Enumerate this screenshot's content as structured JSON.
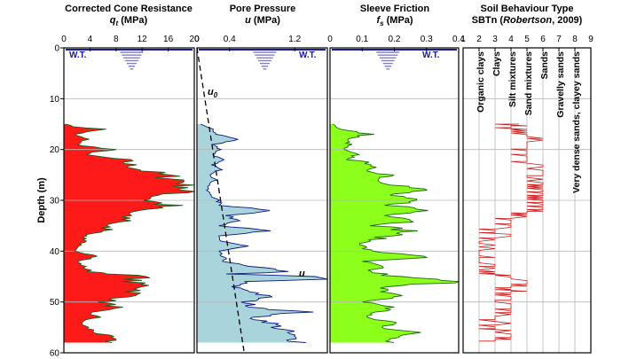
{
  "chart_data": [
    {
      "type": "area",
      "title": "Corrected Cone Resistance",
      "xlabel": "qt (MPa)",
      "ylabel": "Depth (m)",
      "xlim": [
        0,
        20
      ],
      "ylim": [
        60,
        0
      ],
      "xticks": [
        "0",
        "4",
        "8",
        "12",
        "16",
        "20"
      ],
      "yticks": [
        "0",
        "10",
        "20",
        "30",
        "40",
        "50",
        "60"
      ],
      "annotations": [
        "W.T."
      ],
      "water_table_depth": 0,
      "grid": "horizontal",
      "series": [
        {
          "y": [
            15,
            15.5,
            16,
            17,
            18,
            19,
            20,
            21,
            22,
            23,
            24,
            25,
            26,
            27,
            27.5,
            28,
            28.5,
            29,
            30,
            31,
            32,
            33,
            34,
            35,
            36,
            37,
            38,
            39,
            40,
            41,
            42,
            43,
            44,
            45,
            46,
            47,
            48,
            49,
            50,
            51,
            52,
            53,
            54,
            55,
            56,
            57,
            58
          ],
          "values": [
            0.3,
            1.5,
            6,
            1.5,
            3.5,
            2,
            7,
            3,
            9,
            10,
            12,
            15,
            18,
            19.5,
            20,
            17,
            19,
            15,
            13,
            16,
            11,
            9,
            10,
            6,
            7,
            3,
            3.5,
            2,
            1.5,
            6,
            2,
            3,
            4,
            12,
            10,
            13,
            11,
            10,
            6,
            8,
            4,
            5,
            2.5,
            3.5,
            5,
            7,
            7
          ]
        }
      ]
    },
    {
      "type": "area",
      "title": "Pore Pressure",
      "xlabel": "u (MPa)",
      "xlim": [
        0,
        1.6
      ],
      "ylim": [
        60,
        0
      ],
      "xticks": [
        "0",
        "0.4",
        "1.2"
      ],
      "annotations": [
        "W.T.",
        "u0",
        "u"
      ],
      "series": [
        {
          "name": "u",
          "y": [
            15,
            16,
            17,
            18,
            19,
            20,
            21,
            22,
            23,
            24,
            25,
            26,
            27,
            28,
            29,
            30,
            31,
            32,
            33,
            34,
            35,
            36,
            37,
            38,
            39,
            40,
            41,
            42,
            43,
            44,
            44.5,
            45,
            45.5,
            46,
            47,
            48,
            49,
            50,
            51,
            52,
            53,
            54,
            55,
            56,
            57,
            58
          ],
          "values": [
            0.05,
            0.18,
            0.25,
            0.5,
            0.22,
            0.28,
            0.2,
            0.3,
            0.2,
            0.28,
            0.18,
            0.22,
            0.15,
            0.12,
            0.18,
            0.25,
            0.3,
            1.0,
            0.35,
            0.55,
            0.3,
            0.85,
            0.25,
            0.3,
            0.6,
            0.25,
            0.3,
            0.35,
            0.6,
            1.2,
            0.4,
            1.35,
            1.6,
            0.6,
            0.45,
            0.7,
            0.85,
            0.6,
            0.7,
            1.3,
            0.65,
            0.9,
            1.0,
            1.1,
            1.15,
            1.3
          ]
        },
        {
          "name": "u0",
          "y": [
            0,
            60
          ],
          "values": [
            0,
            0.58
          ]
        }
      ]
    },
    {
      "type": "area",
      "title": "Sleeve Friction",
      "xlabel": "fs (MPa)",
      "xlim": [
        0,
        0.4
      ],
      "ylim": [
        60,
        0
      ],
      "xticks": [
        "0",
        "0.1",
        "0.2",
        "0.3",
        "0.4"
      ],
      "annotations": [
        "W.T."
      ],
      "series": [
        {
          "y": [
            15,
            16,
            17,
            18,
            19,
            20,
            21,
            22,
            23,
            24,
            25,
            26,
            27,
            28,
            29,
            30,
            31,
            32,
            33,
            34,
            35,
            36,
            37,
            38,
            39,
            40,
            41,
            42,
            43,
            44,
            45,
            46,
            47,
            48,
            49,
            50,
            51,
            52,
            53,
            54,
            55,
            56,
            57,
            58
          ],
          "values": [
            0.01,
            0.03,
            0.12,
            0.05,
            0.06,
            0.04,
            0.08,
            0.06,
            0.15,
            0.1,
            0.2,
            0.15,
            0.22,
            0.28,
            0.18,
            0.25,
            0.2,
            0.3,
            0.2,
            0.28,
            0.15,
            0.25,
            0.18,
            0.12,
            0.1,
            0.12,
            0.32,
            0.1,
            0.15,
            0.12,
            0.2,
            0.4,
            0.2,
            0.15,
            0.22,
            0.1,
            0.2,
            0.15,
            0.1,
            0.2,
            0.18,
            0.25,
            0.22,
            0.2
          ]
        }
      ]
    },
    {
      "type": "line",
      "title": "Soil Behaviour Type",
      "subtitle": "SBTn (Robertson, 2009)",
      "xlim": [
        1,
        9
      ],
      "ylim": [
        60,
        0
      ],
      "xticks": [
        "1",
        "2",
        "3",
        "4",
        "5",
        "6",
        "7",
        "8",
        "9"
      ],
      "zone_labels": [
        "Organic clays",
        "Clays",
        "Silt mixtures",
        "Sand mixtures",
        "Sands",
        "Gravelly sands",
        "Very dense sands, clayey sands"
      ],
      "series": [
        {
          "name": "SBTn",
          "y": [
            15,
            16,
            17,
            18,
            19,
            20,
            21,
            22,
            23,
            24,
            25,
            26,
            27,
            28,
            29,
            30,
            31,
            32,
            33,
            34,
            35,
            36,
            37,
            38,
            39,
            40,
            41,
            42,
            43,
            44,
            45,
            46,
            47,
            48,
            49,
            50,
            51,
            52,
            53,
            54,
            55,
            56,
            57,
            58
          ],
          "values": [
            4.5,
            4.5,
            4.8,
            5.5,
            5.2,
            4.8,
            5.5,
            5,
            5.6,
            5.2,
            5.8,
            5.5,
            5.8,
            5.9,
            5.6,
            5.8,
            5.5,
            5.9,
            4.8,
            4.5,
            4,
            3.5,
            3.5,
            2.2,
            2.5,
            2.2,
            2.5,
            2.2,
            3,
            2.5,
            4.5,
            5,
            4.5,
            4.5,
            4,
            3.5,
            4,
            3.5,
            3,
            3.5,
            3.2,
            3.8,
            3.5,
            3.2
          ]
        }
      ]
    }
  ],
  "labels": {
    "p1_title": "Corrected Cone Resistance",
    "p1_sym": "q",
    "p1_sub": "t",
    "p1_unit": " (MPa)",
    "p2_title": "Pore Pressure",
    "p2_sym": "u",
    "p2_unit": " (MPa)",
    "p3_title": "Sleeve Friction",
    "p3_sym": "f",
    "p3_sub": "s",
    "p3_unit": " (MPa)",
    "p4_title": "Soil Behaviour Type",
    "p4_sub_a": "SBTn (",
    "p4_sub_b": "Robertson",
    "p4_sub_c": ", 2009)",
    "wt": "W.T.",
    "u0_a": "u",
    "u0_b": "0",
    "u_label": "u",
    "ylabel": "Depth (m)"
  },
  "colors": {
    "qt_fill": "#ff1a1a",
    "qt_line": "#1e5a1e",
    "u_fill": "#a9d4dc",
    "u_line": "#0b1a7a",
    "fs_fill": "#8cff1a",
    "fs_line": "#1e6a0e",
    "sbt_line": "#c81e1e",
    "wt_blue": "#1a1aa0",
    "wt_tri": "#8080c8"
  }
}
